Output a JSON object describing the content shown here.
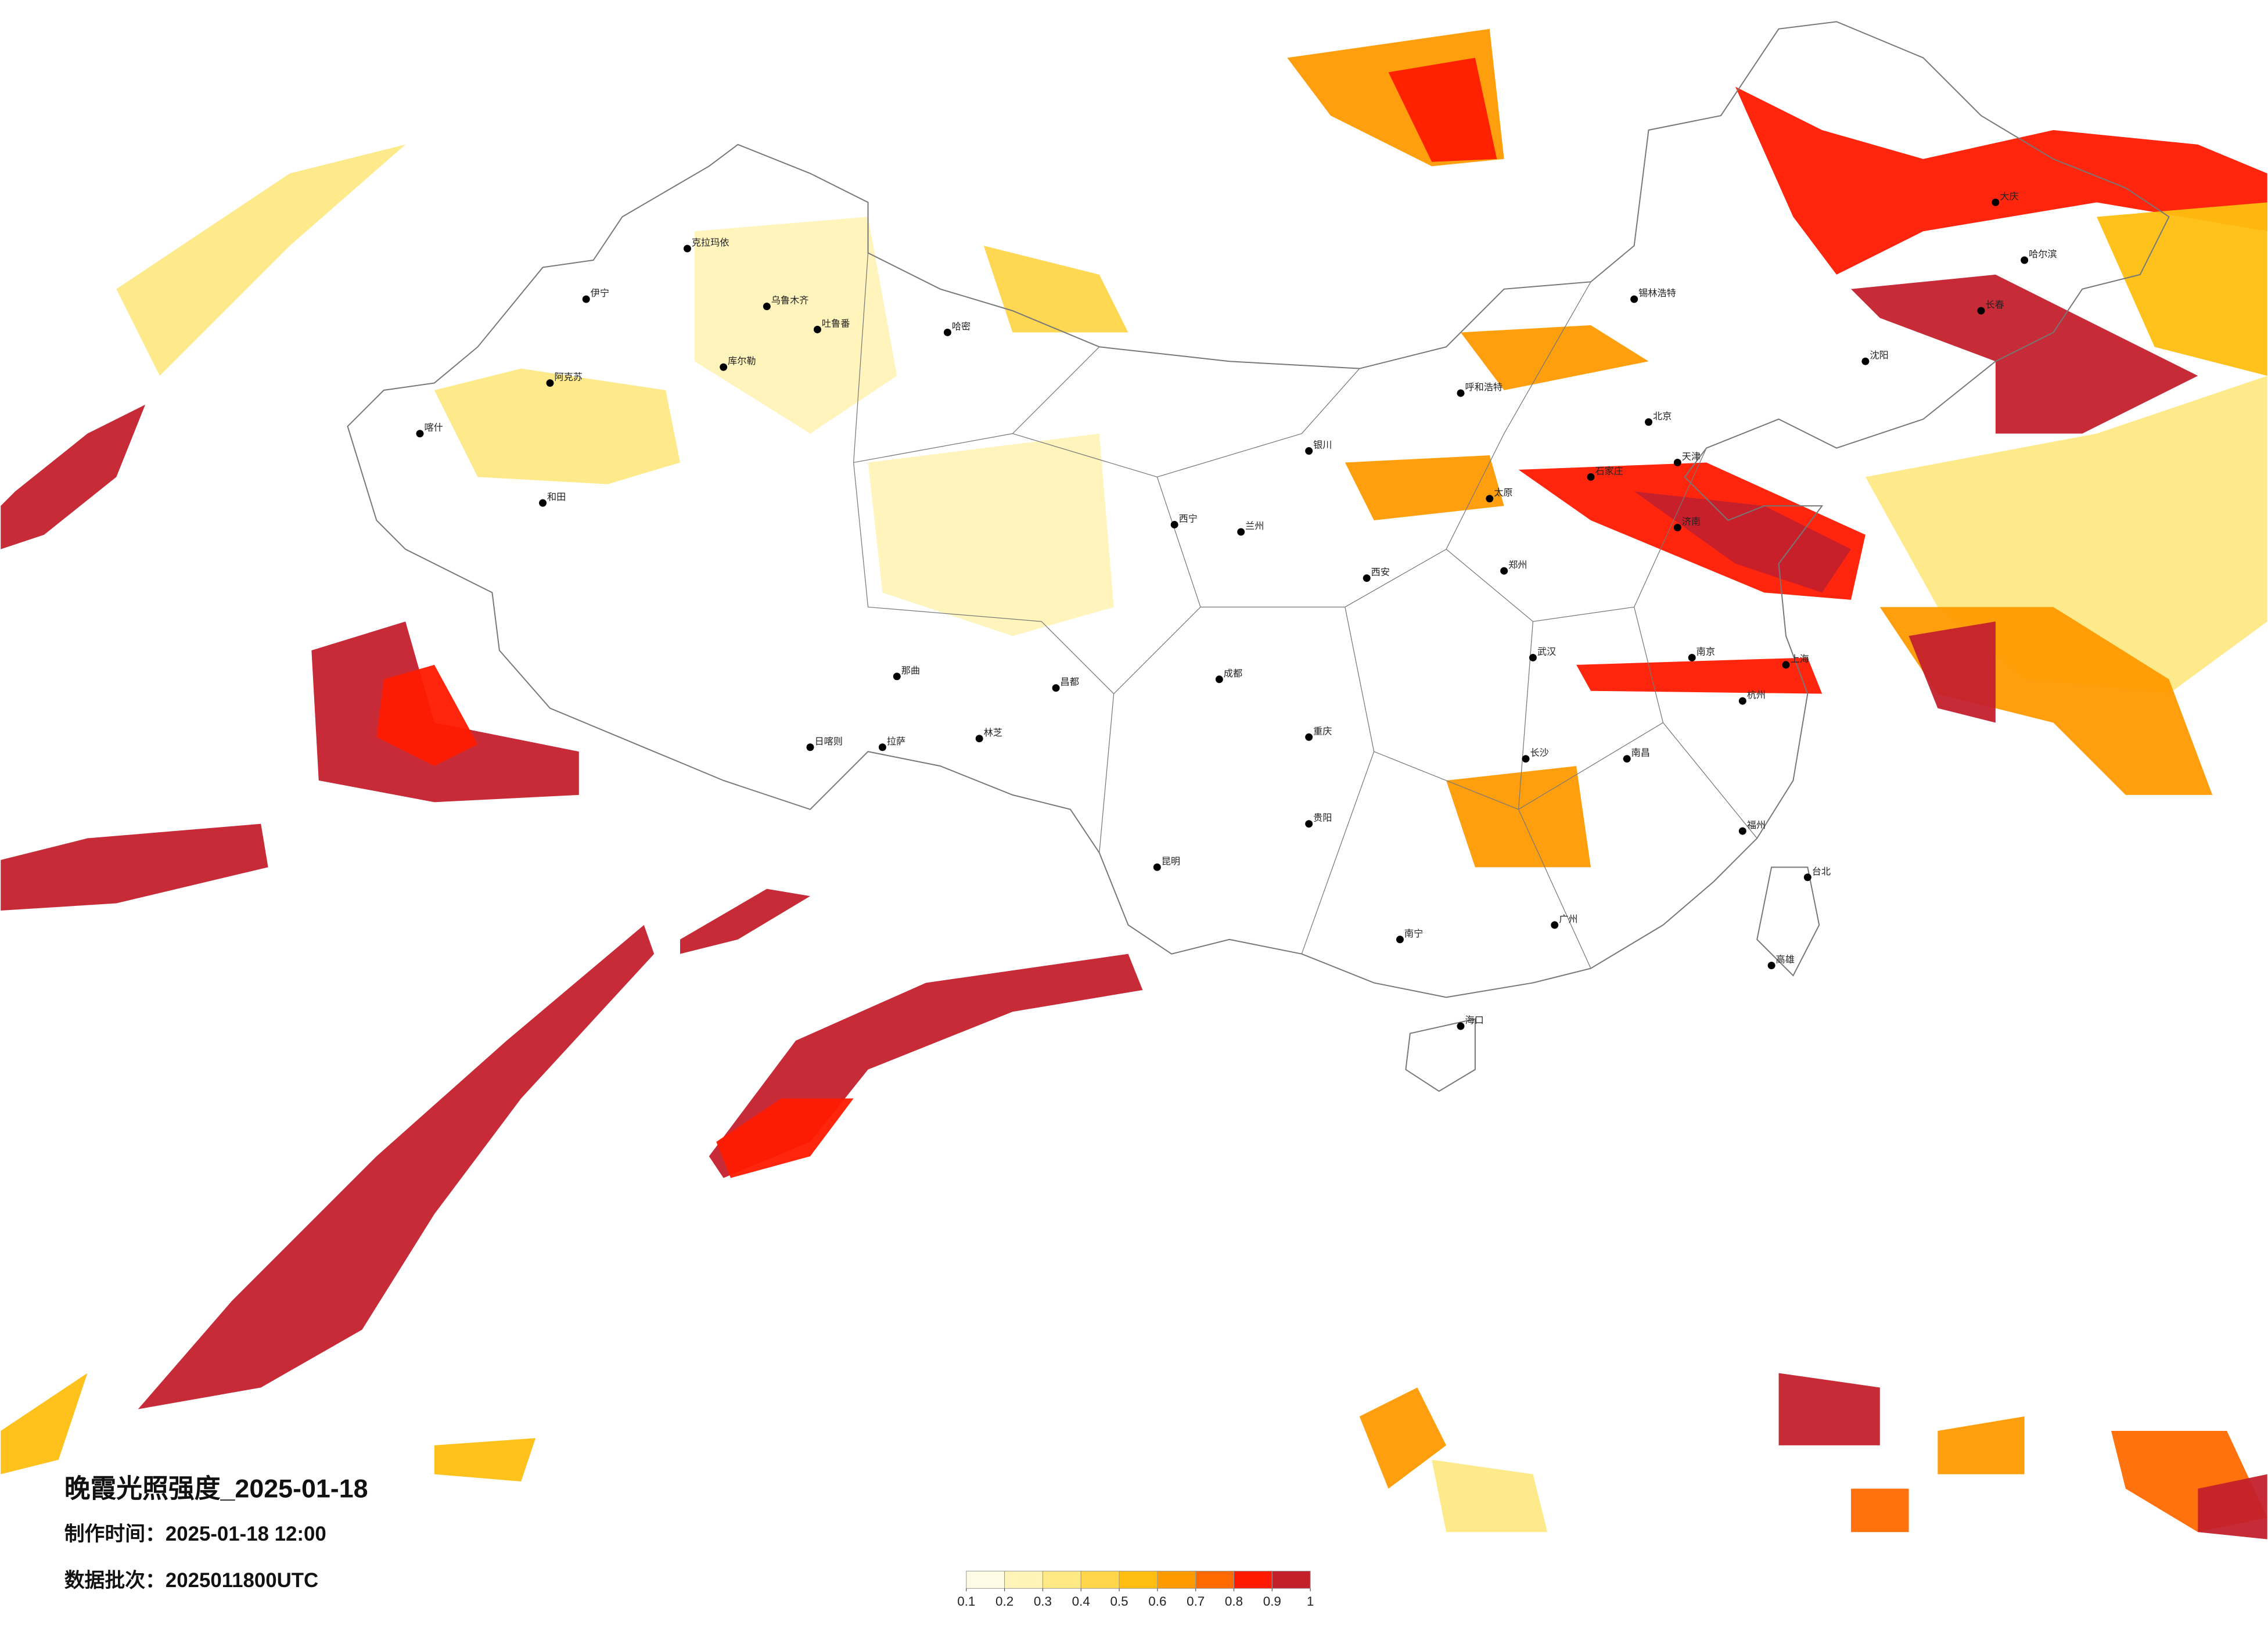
{
  "title": "晚霞光照强度_2025-01-18",
  "production_time": "制作时间：2025-01-18 12:00",
  "data_batch": "数据批次：2025011800UTC",
  "legend": {
    "ticks": [
      0.1,
      0.2,
      0.3,
      0.4,
      0.5,
      0.6,
      0.7,
      0.8,
      0.9,
      1
    ],
    "colors": [
      "#fefbe4",
      "#fff3b8",
      "#ffe985",
      "#ffd64a",
      "#ffbe10",
      "#ff9a00",
      "#ff6a00",
      "#ff1a00",
      "#c4202c"
    ]
  },
  "cities": [
    "克拉玛依",
    "伊宁",
    "阿克苏",
    "喀什",
    "和田",
    "库尔勒",
    "哈密",
    "吐鲁番",
    "乌鲁木齐",
    "日喀则",
    "拉萨",
    "林芝",
    "那曲",
    "昌都",
    "西宁",
    "兰州",
    "银川",
    "呼和浩特",
    "北京",
    "天津",
    "石家庄",
    "太原",
    "西安",
    "郑州",
    "武汉",
    "长沙",
    "南昌",
    "杭州",
    "南京",
    "上海",
    "福州",
    "广州",
    "南宁",
    "昆明",
    "贵阳",
    "成都",
    "重庆",
    "哈尔滨",
    "长春",
    "沈阳",
    "海口",
    "台北",
    "高雄",
    "济南",
    "锡林浩特",
    "大庆"
  ]
}
